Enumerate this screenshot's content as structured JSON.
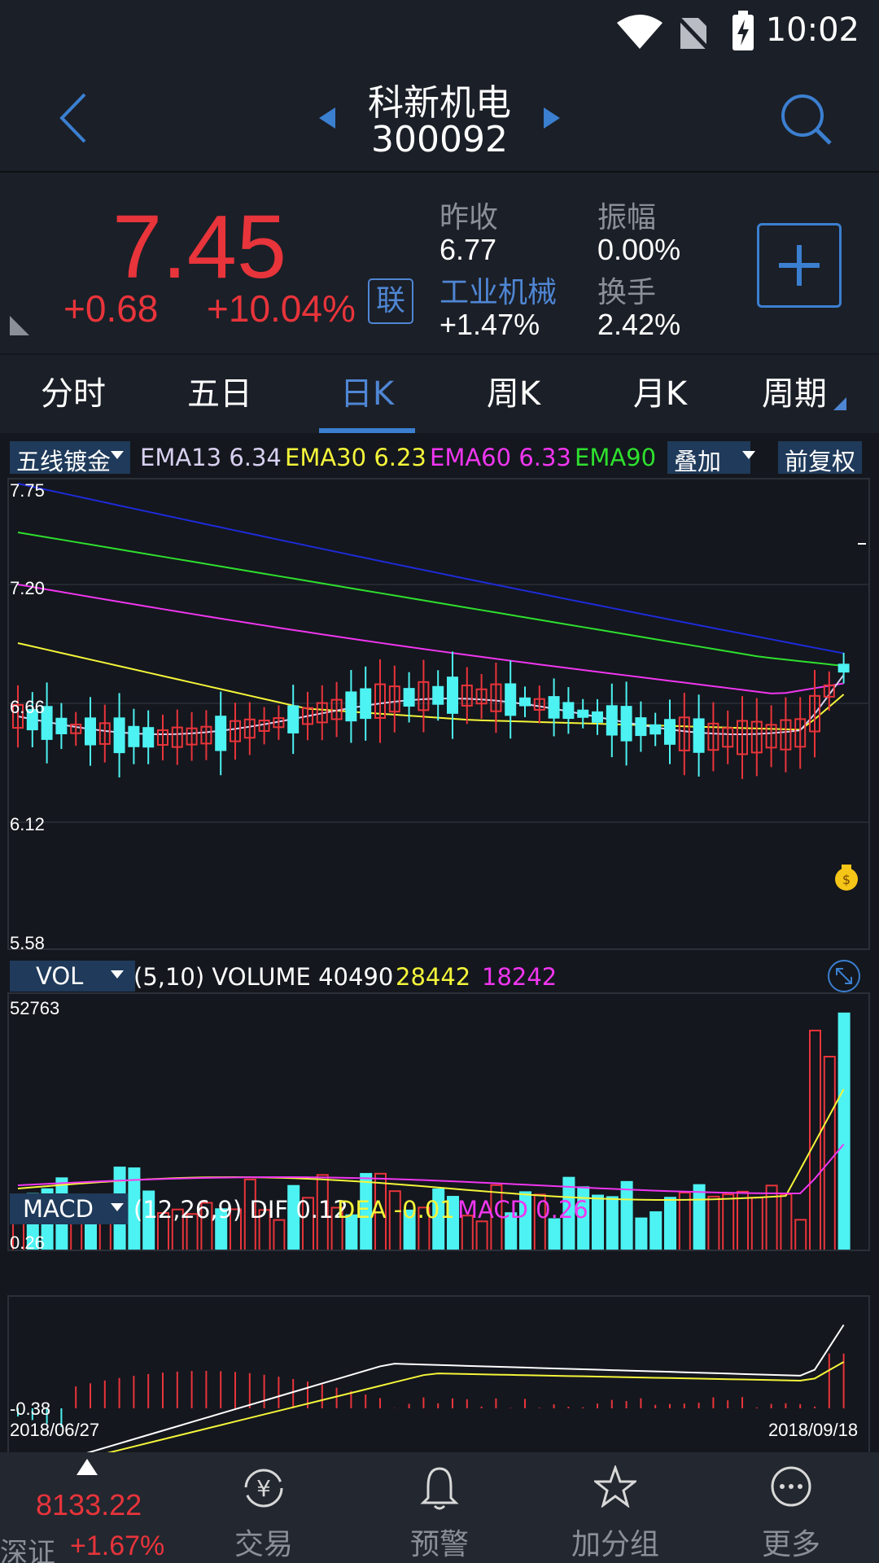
{
  "status": {
    "time": "10:02"
  },
  "header": {
    "name": "科新机电",
    "code": "300092"
  },
  "quote": {
    "price": "7.45",
    "change": "+0.68",
    "change_pct": "+10.04%",
    "lian": "联",
    "prev_close_label": "昨收",
    "prev_close": "6.77",
    "amplitude_label": "振幅",
    "amplitude": "0.00%",
    "sector_label": "工业机械",
    "sector_change": "+1.47%",
    "turnover_label": "换手",
    "turnover": "2.42%"
  },
  "tabs": [
    "分时",
    "五日",
    "日K",
    "周K",
    "月K",
    "周期"
  ],
  "kline": {
    "select_label": "五线镀金",
    "ema": [
      {
        "label": "EMA13",
        "value": "6.34",
        "color": "#d8d0f0"
      },
      {
        "label": "EMA30",
        "value": "6.23",
        "color": "#f5f53a"
      },
      {
        "label": "EMA60",
        "value": "6.33",
        "color": "#f036f0"
      },
      {
        "label": "EMA90",
        "value": "",
        "color": "#2ee02e"
      }
    ],
    "overlay_label": "叠加",
    "adjust_label": "前复权",
    "y_labels": [
      "7.75",
      "7.20",
      "6.66",
      "6.12",
      "5.58"
    ]
  },
  "vol": {
    "select_label": "VOL",
    "params": "(5,10) VOLUME",
    "volume": "40490",
    "ma5": "28442",
    "ma10": "18242",
    "max_label": "52763"
  },
  "macd": {
    "select_label": "MACD",
    "params": "(12,26,9) DIF",
    "dif": "0.12",
    "dea_label": "DEA",
    "dea": "-0.01",
    "macd_label": "MACD",
    "macd": "0.26",
    "max_label": "0.26",
    "min_label": "-0.38"
  },
  "dates": {
    "start": "2018/06/27",
    "end": "2018/09/18"
  },
  "nav": {
    "index_value": "8133.22",
    "index_name": "深证",
    "index_change": "+1.67%",
    "items": [
      "交易",
      "预警",
      "加分组",
      "更多"
    ]
  },
  "colors": {
    "up": "#e8343b",
    "down": "#4df2f2",
    "accent": "#3b7fd0"
  }
}
